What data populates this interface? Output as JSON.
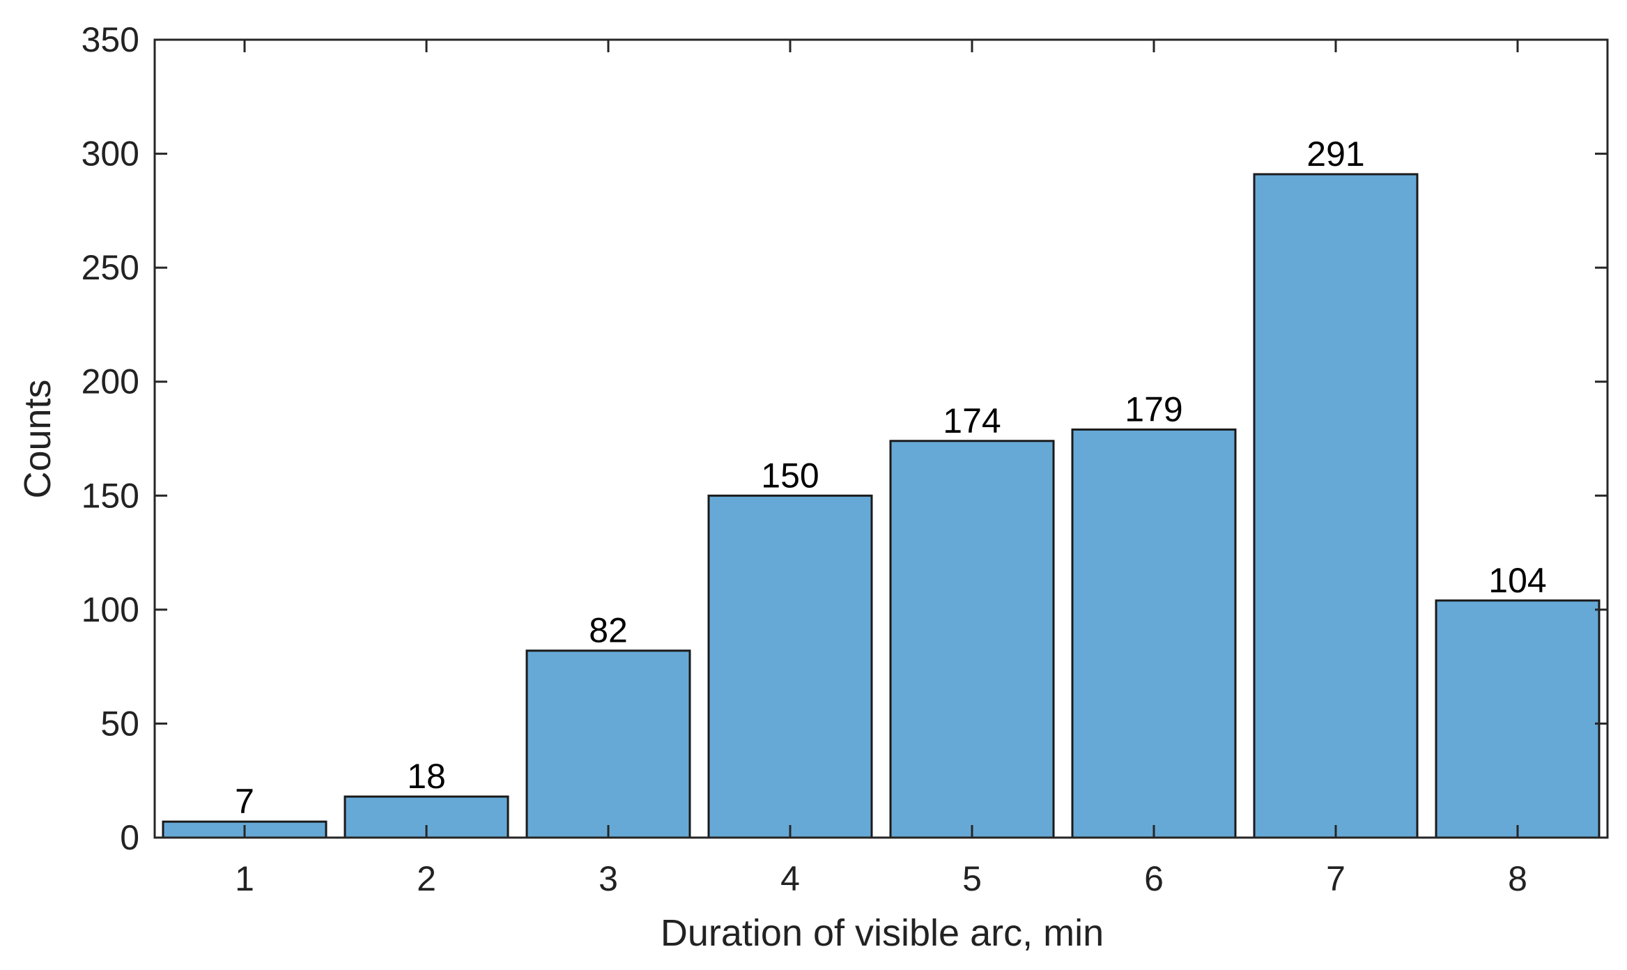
{
  "chart_data": {
    "type": "bar",
    "categories": [
      "1",
      "2",
      "3",
      "4",
      "5",
      "6",
      "7",
      "8"
    ],
    "values": [
      7,
      18,
      82,
      150,
      174,
      179,
      291,
      104
    ],
    "data_labels": [
      "7",
      "18",
      "82",
      "150",
      "174",
      "179",
      "291",
      "104"
    ],
    "xlabel": "Duration of visible arc, min",
    "ylabel": "Counts",
    "ylim": [
      0,
      350
    ],
    "yticks": [
      0,
      50,
      100,
      150,
      200,
      250,
      300,
      350
    ],
    "grid": false,
    "legend": false,
    "bar_color": "#66a9d6",
    "bar_edge_color": "#1a1a1a"
  }
}
